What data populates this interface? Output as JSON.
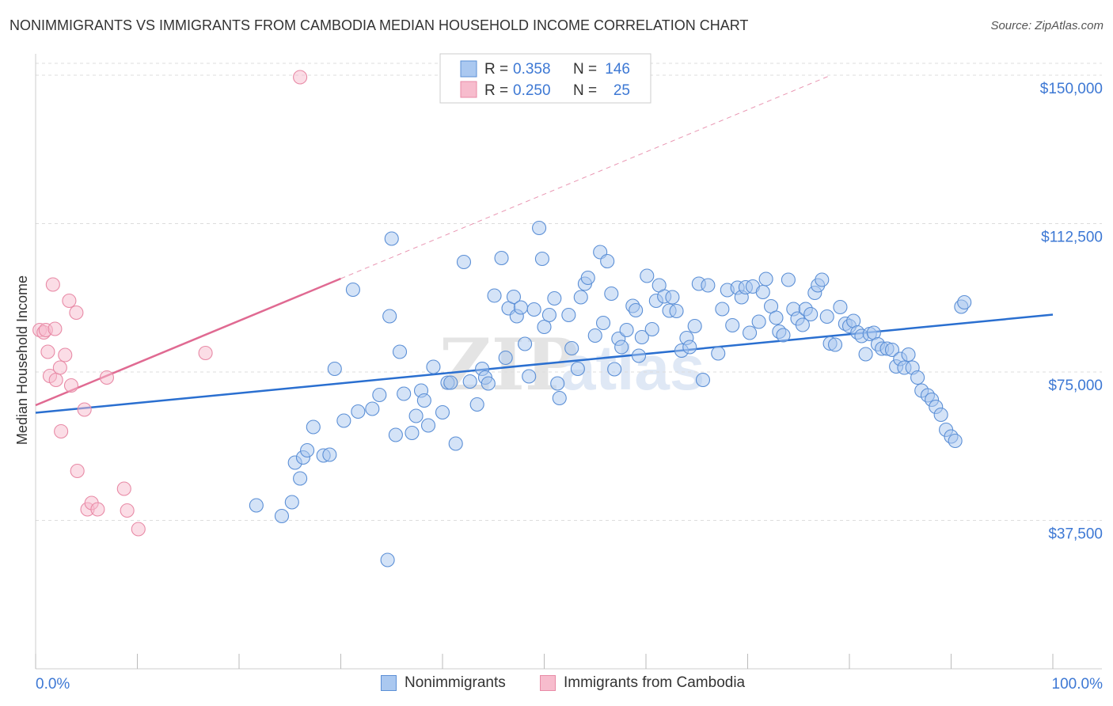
{
  "title": "NONIMMIGRANTS VS IMMIGRANTS FROM CAMBODIA MEDIAN HOUSEHOLD INCOME CORRELATION CHART",
  "source": "Source: ZipAtlas.com",
  "watermark": {
    "zip": "ZIP",
    "atlas": "atlas"
  },
  "colors": {
    "blue_fill": "#aac8f0",
    "blue_stroke": "#5b8fd6",
    "blue_line": "#2a6fd0",
    "pink_fill": "#f7bccd",
    "pink_stroke": "#e88aa6",
    "pink_line": "#e06a92",
    "tick_label": "#3d78d4",
    "grid": "#dddddd"
  },
  "legend": {
    "rows": [
      {
        "r_label": "R =",
        "r_value": "0.358",
        "n_label": "N =",
        "n_value": "146"
      },
      {
        "r_label": "R =",
        "r_value": "0.250",
        "n_label": "N =",
        "n_value": "25"
      }
    ]
  },
  "chart_data": {
    "type": "scatter",
    "xlabel": "",
    "ylabel": "Median Household Income",
    "x_tick_labels": [
      "0.0%",
      "100.0%"
    ],
    "y_tick_labels": [
      "$37,500",
      "$75,000",
      "$112,500",
      "$150,000"
    ],
    "y_ticks": [
      37500,
      75000,
      112500,
      150000
    ],
    "xlim": [
      0,
      100
    ],
    "ylim": [
      0,
      153000
    ],
    "grid": true,
    "legend_position": "top-center",
    "series": [
      {
        "name": "Nonimmigrants",
        "color": "#aac8f0",
        "trend": {
          "x": [
            0,
            100
          ],
          "y": [
            64700,
            89500
          ]
        },
        "points": [
          [
            21.7,
            41.3
          ],
          [
            24.2,
            38.6
          ],
          [
            25.2,
            42.1
          ],
          [
            25.5,
            52.1
          ],
          [
            26.0,
            48.1
          ],
          [
            26.3,
            53.4
          ],
          [
            26.7,
            55.2
          ],
          [
            27.3,
            61.1
          ],
          [
            28.3,
            53.9
          ],
          [
            28.9,
            54.1
          ],
          [
            29.4,
            75.8
          ],
          [
            30.3,
            62.7
          ],
          [
            31.2,
            95.8
          ],
          [
            31.7,
            65.0
          ],
          [
            33.1,
            65.7
          ],
          [
            33.8,
            69.2
          ],
          [
            34.6,
            27.5
          ],
          [
            34.8,
            89.1
          ],
          [
            35.0,
            108.7
          ],
          [
            35.4,
            59.1
          ],
          [
            35.8,
            80.1
          ],
          [
            36.2,
            69.5
          ],
          [
            37.0,
            59.6
          ],
          [
            37.4,
            63.9
          ],
          [
            37.9,
            70.3
          ],
          [
            38.2,
            67.8
          ],
          [
            38.6,
            61.5
          ],
          [
            39.1,
            76.3
          ],
          [
            40.0,
            64.8
          ],
          [
            40.5,
            72.3
          ],
          [
            40.8,
            72.3
          ],
          [
            41.3,
            56.9
          ],
          [
            42.1,
            102.8
          ],
          [
            42.7,
            72.6
          ],
          [
            43.4,
            66.8
          ],
          [
            43.9,
            75.8
          ],
          [
            44.2,
            73.6
          ],
          [
            44.5,
            72.1
          ],
          [
            45.1,
            94.3
          ],
          [
            45.8,
            103.8
          ],
          [
            46.2,
            78.6
          ],
          [
            46.5,
            91.1
          ],
          [
            47.0,
            94.0
          ],
          [
            47.3,
            89.1
          ],
          [
            47.7,
            91.3
          ],
          [
            48.1,
            82.1
          ],
          [
            48.5,
            73.9
          ],
          [
            49.0,
            90.8
          ],
          [
            49.5,
            111.4
          ],
          [
            49.8,
            103.6
          ],
          [
            50.0,
            86.4
          ],
          [
            50.5,
            89.4
          ],
          [
            51.0,
            93.6
          ],
          [
            51.3,
            72.1
          ],
          [
            51.5,
            68.4
          ],
          [
            52.4,
            89.4
          ],
          [
            52.7,
            81.0
          ],
          [
            53.3,
            75.8
          ],
          [
            53.6,
            93.9
          ],
          [
            54.0,
            97.3
          ],
          [
            54.3,
            98.8
          ],
          [
            55.0,
            84.2
          ],
          [
            55.5,
            105.3
          ],
          [
            55.8,
            87.4
          ],
          [
            56.2,
            103.0
          ],
          [
            56.6,
            94.8
          ],
          [
            56.9,
            75.7
          ],
          [
            57.3,
            83.4
          ],
          [
            57.6,
            81.3
          ],
          [
            58.1,
            85.6
          ],
          [
            58.7,
            91.7
          ],
          [
            59.0,
            90.6
          ],
          [
            59.3,
            79.1
          ],
          [
            59.6,
            83.8
          ],
          [
            60.1,
            99.3
          ],
          [
            60.6,
            85.8
          ],
          [
            61.0,
            93.0
          ],
          [
            61.3,
            96.9
          ],
          [
            61.8,
            94.1
          ],
          [
            62.3,
            90.5
          ],
          [
            62.6,
            93.9
          ],
          [
            63.0,
            90.4
          ],
          [
            63.5,
            80.4
          ],
          [
            64.0,
            83.6
          ],
          [
            64.3,
            81.3
          ],
          [
            64.8,
            86.6
          ],
          [
            65.2,
            97.3
          ],
          [
            65.6,
            73.0
          ],
          [
            66.1,
            96.9
          ],
          [
            67.1,
            79.7
          ],
          [
            67.5,
            90.9
          ],
          [
            68.0,
            95.7
          ],
          [
            68.5,
            86.8
          ],
          [
            69.0,
            96.3
          ],
          [
            69.4,
            93.9
          ],
          [
            69.8,
            96.4
          ],
          [
            70.2,
            84.9
          ],
          [
            70.5,
            96.6
          ],
          [
            71.1,
            87.7
          ],
          [
            71.5,
            95.2
          ],
          [
            71.8,
            98.5
          ],
          [
            72.3,
            91.6
          ],
          [
            72.8,
            88.7
          ],
          [
            73.1,
            85.2
          ],
          [
            73.5,
            84.3
          ],
          [
            74.0,
            98.3
          ],
          [
            74.5,
            90.9
          ],
          [
            74.9,
            88.5
          ],
          [
            75.4,
            86.9
          ],
          [
            75.7,
            90.9
          ],
          [
            76.2,
            89.6
          ],
          [
            76.6,
            95.0
          ],
          [
            76.9,
            96.9
          ],
          [
            77.3,
            98.3
          ],
          [
            77.8,
            89.0
          ],
          [
            78.1,
            82.2
          ],
          [
            78.6,
            81.9
          ],
          [
            79.1,
            91.4
          ],
          [
            79.6,
            87.2
          ],
          [
            80.0,
            86.6
          ],
          [
            80.4,
            87.9
          ],
          [
            80.8,
            85.0
          ],
          [
            81.2,
            84.1
          ],
          [
            81.6,
            79.5
          ],
          [
            82.0,
            84.6
          ],
          [
            82.4,
            84.9
          ],
          [
            82.8,
            82.0
          ],
          [
            83.2,
            80.9
          ],
          [
            83.7,
            80.9
          ],
          [
            84.2,
            80.6
          ],
          [
            84.6,
            76.4
          ],
          [
            85.0,
            78.3
          ],
          [
            85.4,
            76.1
          ],
          [
            85.8,
            79.4
          ],
          [
            86.2,
            76.1
          ],
          [
            86.7,
            73.6
          ],
          [
            87.1,
            70.3
          ],
          [
            87.7,
            69.1
          ],
          [
            88.1,
            68.0
          ],
          [
            88.5,
            66.2
          ],
          [
            89.0,
            64.2
          ],
          [
            89.5,
            60.4
          ],
          [
            90.0,
            58.7
          ],
          [
            90.4,
            57.6
          ],
          [
            91.0,
            91.5
          ],
          [
            91.3,
            92.6
          ]
        ]
      },
      {
        "name": "Immigrants from Cambodia",
        "color": "#f7bccd",
        "trend": {
          "x": [
            0,
            30
          ],
          "y": [
            66600,
            98600
          ]
        },
        "trend_extension": {
          "x": [
            30,
            78
          ],
          "y": [
            98600,
            149800
          ]
        },
        "points": [
          [
            0.4,
            85.6
          ],
          [
            0.8,
            85.0
          ],
          [
            1.0,
            85.6
          ],
          [
            1.2,
            80.1
          ],
          [
            1.4,
            74.0
          ],
          [
            1.7,
            97.1
          ],
          [
            1.9,
            85.9
          ],
          [
            2.0,
            73.0
          ],
          [
            2.4,
            76.1
          ],
          [
            2.5,
            60.0
          ],
          [
            2.9,
            79.3
          ],
          [
            3.3,
            93.0
          ],
          [
            3.5,
            71.6
          ],
          [
            4.0,
            90.0
          ],
          [
            4.1,
            50.0
          ],
          [
            4.8,
            65.5
          ],
          [
            5.1,
            40.3
          ],
          [
            5.5,
            41.9
          ],
          [
            6.1,
            40.3
          ],
          [
            7.0,
            73.6
          ],
          [
            8.7,
            45.5
          ],
          [
            9.0,
            40.0
          ],
          [
            10.1,
            35.3
          ],
          [
            16.7,
            79.8
          ],
          [
            26.0,
            149.5
          ]
        ]
      }
    ]
  }
}
